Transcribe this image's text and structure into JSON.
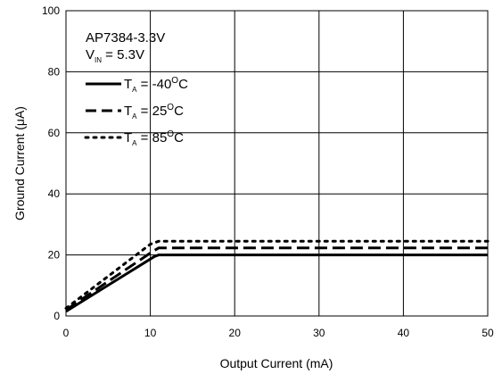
{
  "chart_data": {
    "type": "line",
    "title": "",
    "xlabel": "Output Current (mA)",
    "ylabel": "Ground Current (μA)",
    "xlim": [
      0,
      50
    ],
    "ylim": [
      0,
      100
    ],
    "xticks": [
      0,
      10,
      20,
      30,
      40,
      50
    ],
    "yticks": [
      0,
      20,
      40,
      60,
      80,
      100
    ],
    "x_tick_labels": [
      "0",
      "10",
      "20",
      "30",
      "40",
      "50"
    ],
    "y_tick_labels": [
      "0",
      "20",
      "40",
      "60",
      "80",
      "100"
    ],
    "grid": true,
    "legend_position": "top-left",
    "annotation": {
      "device": "AP7384-3.3V",
      "vin_symbol": "V",
      "vin_sub": "IN",
      "vin_value": " = 5.3V"
    },
    "series": [
      {
        "name": "T_A = -40°C",
        "legend": {
          "symbol": "T",
          "sub": "A",
          "pre": " = -40",
          "sup": "O",
          "post": "C"
        },
        "style": "solid",
        "color": "#000000",
        "x": [
          0,
          10.5,
          11,
          50
        ],
        "y": [
          1.5,
          19.5,
          20,
          20
        ]
      },
      {
        "name": "T_A = 25°C",
        "legend": {
          "symbol": "T",
          "sub": "A",
          "pre": " = 25",
          "sup": "O",
          "post": "C"
        },
        "style": "dashed",
        "color": "#000000",
        "x": [
          0,
          10.2,
          11,
          50
        ],
        "y": [
          2,
          21,
          22.3,
          22.3
        ]
      },
      {
        "name": "T_A = 85°C",
        "legend": {
          "symbol": "T",
          "sub": "A",
          "pre": " = 85",
          "sup": "O",
          "post": "C"
        },
        "style": "dotted",
        "color": "#000000",
        "x": [
          0,
          10,
          11,
          50
        ],
        "y": [
          2.5,
          23.5,
          24.5,
          24.5
        ]
      }
    ]
  }
}
